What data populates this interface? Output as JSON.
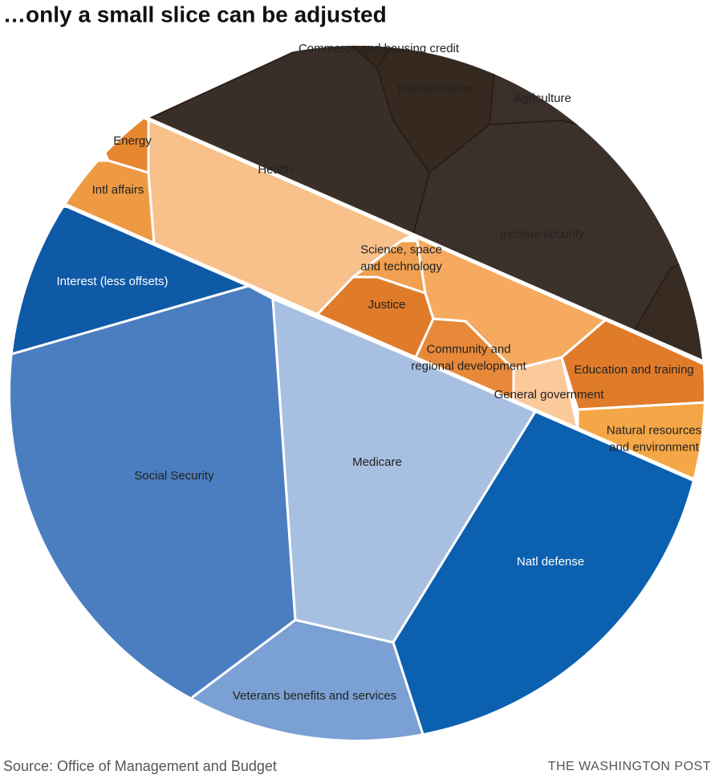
{
  "title": "…only a small slice can be adjusted",
  "cells": [
    {
      "lines": [
        "Commerce and housing credit"
      ]
    },
    {
      "lines": [
        "Transportation"
      ]
    },
    {
      "lines": [
        "Agriculture"
      ]
    },
    {
      "lines": [
        "Energy"
      ]
    },
    {
      "lines": [
        "Health"
      ]
    },
    {
      "lines": [
        "Intl affairs"
      ]
    },
    {
      "lines": [
        "Income security"
      ]
    },
    {
      "lines": [
        "Science, space",
        "and technology"
      ]
    },
    {
      "lines": [
        "Interest (less offsets)"
      ]
    },
    {
      "lines": [
        "Justice"
      ]
    },
    {
      "lines": [
        "Community and",
        "regional development"
      ]
    },
    {
      "lines": [
        "Education and training"
      ]
    },
    {
      "lines": [
        "General government"
      ]
    },
    {
      "lines": [
        "Natural resources",
        "and environment"
      ]
    },
    {
      "lines": [
        "Social Security"
      ]
    },
    {
      "lines": [
        "Medicare"
      ]
    },
    {
      "lines": [
        "Natl defense"
      ]
    },
    {
      "lines": [
        "Veterans benefits and services"
      ]
    }
  ],
  "source": "Source: Office of Management and Budget",
  "credit": "THE WASHINGTON POST"
}
